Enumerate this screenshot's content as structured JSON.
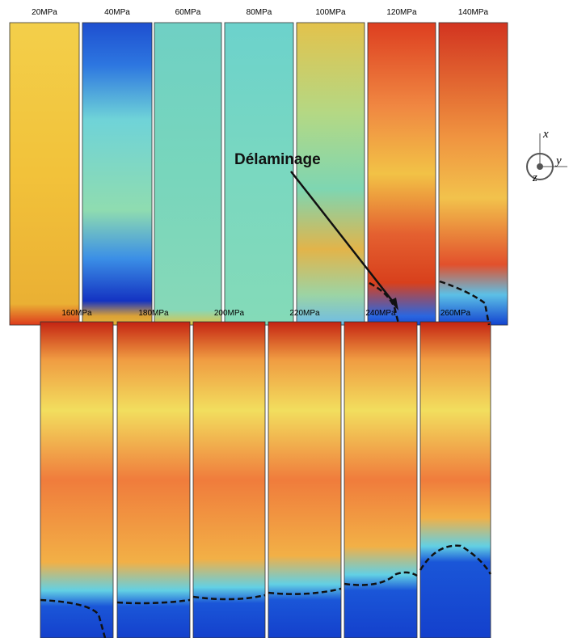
{
  "panels_top": [
    {
      "label": "20MPa"
    },
    {
      "label": "40MPa"
    },
    {
      "label": "60MPa"
    },
    {
      "label": "80MPa"
    },
    {
      "label": "100MPa"
    },
    {
      "label": "120MPa"
    },
    {
      "label": "140MPa"
    }
  ],
  "panels_bottom": [
    {
      "label": "160MPa"
    },
    {
      "label": "180MPa"
    },
    {
      "label": "200MPa"
    },
    {
      "label": "220MPa"
    },
    {
      "label": "240MPa"
    },
    {
      "label": "260MPa"
    }
  ],
  "annotation": "Délaminage",
  "axes": {
    "x": "x",
    "y": "y",
    "z": "z"
  }
}
